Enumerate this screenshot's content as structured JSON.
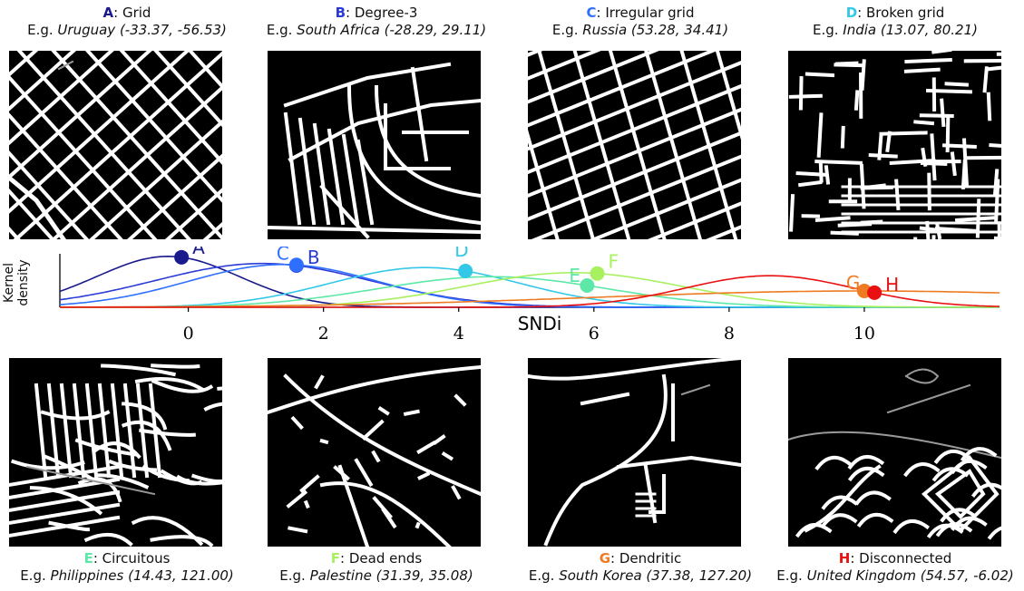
{
  "panels": [
    {
      "letter": "A",
      "name": "Grid",
      "color": "#1a1a8c",
      "eg": "E.g.",
      "place": "Uruguay (-33.37, -56.53)",
      "pattern": "grid"
    },
    {
      "letter": "B",
      "name": "Degree-3",
      "color": "#2b3bd6",
      "eg": "E.g.",
      "place": "South Africa (-28.29, 29.11)",
      "pattern": "degree3"
    },
    {
      "letter": "C",
      "name": "Irregular grid",
      "color": "#2f6fff",
      "eg": "E.g.",
      "place": "Russia (53.28, 34.41)",
      "pattern": "irregular"
    },
    {
      "letter": "D",
      "name": "Broken grid",
      "color": "#33c8e8",
      "eg": "E.g.",
      "place": "India (13.07, 80.21)",
      "pattern": "broken"
    },
    {
      "letter": "E",
      "name": "Circuitous",
      "color": "#5de8a8",
      "eg": "E.g.",
      "place": "Philippines (14.43, 121.00)",
      "pattern": "circuitous"
    },
    {
      "letter": "F",
      "name": "Dead ends",
      "color": "#a8f060",
      "eg": "E.g.",
      "place": "Palestine (31.39, 35.08)",
      "pattern": "deadends"
    },
    {
      "letter": "G",
      "name": "Dendritic",
      "color": "#ee7a22",
      "eg": "E.g.",
      "place": "South Korea (37.38, 127.20)",
      "pattern": "dendritic"
    },
    {
      "letter": "H",
      "name": "Disconnected",
      "color": "#e81010",
      "eg": "E.g.",
      "place": "United Kingdom (54.57, -6.02)",
      "pattern": "disconnected"
    }
  ],
  "chart_data": {
    "type": "line",
    "xlabel": "SNDi",
    "ylabel": "Kernel density",
    "xlim": [
      -1.9,
      12
    ],
    "ylim": [
      0,
      1.05
    ],
    "xticks": [
      0,
      2,
      4,
      6,
      8,
      10
    ],
    "series": [
      {
        "name": "A",
        "color": "#1a1a8c",
        "mu": -0.3,
        "sigma": 1.05,
        "peak": 1.0,
        "marker_x": -0.1
      },
      {
        "name": "B",
        "color": "#2b3bd6",
        "mu": 1.1,
        "sigma": 1.6,
        "peak": 0.86,
        "marker_x": 1.6
      },
      {
        "name": "C",
        "color": "#2f6fff",
        "mu": 1.4,
        "sigma": 1.4,
        "peak": 0.84,
        "marker_x": 1.6
      },
      {
        "name": "D",
        "color": "#33c8e8",
        "mu": 3.5,
        "sigma": 1.4,
        "peak": 0.78,
        "marker_x": 4.1
      },
      {
        "name": "E",
        "color": "#5de8a8",
        "mu": 4.5,
        "sigma": 1.7,
        "peak": 0.6,
        "marker_x": 5.9
      },
      {
        "name": "F",
        "color": "#a8f060",
        "mu": 5.7,
        "sigma": 1.6,
        "peak": 0.68,
        "marker_x": 6.05
      },
      {
        "name": "G",
        "color": "#ee7a22",
        "mu": 10.0,
        "sigma": 4.0,
        "peak": 0.32,
        "marker_x": 10.0
      },
      {
        "name": "H",
        "color": "#e81010",
        "mu": 8.6,
        "sigma": 1.25,
        "peak": 0.62,
        "marker_x": 10.15
      }
    ]
  }
}
